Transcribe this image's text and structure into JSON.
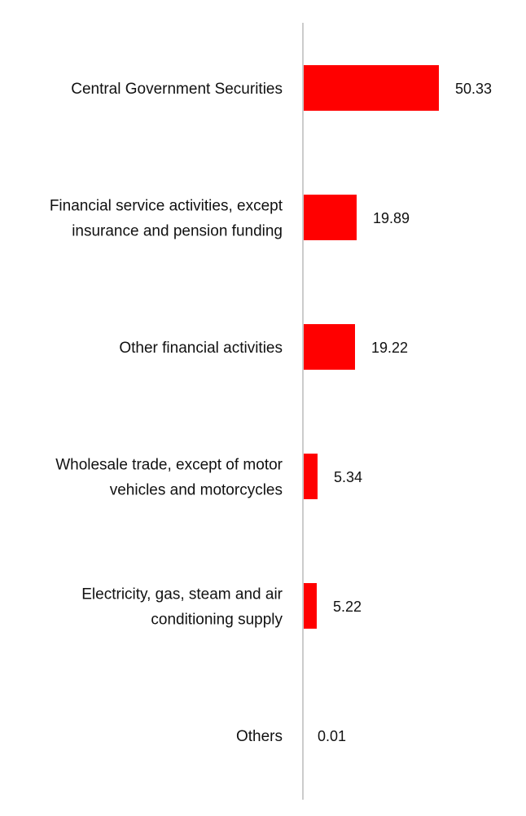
{
  "chart_data": {
    "type": "bar",
    "orientation": "horizontal",
    "title": "",
    "xlabel": "",
    "ylabel": "",
    "grid": false,
    "legend": "none",
    "bar_color": "#ff0000",
    "axis_color": "#cccccc",
    "xlim": [
      0,
      50.33
    ],
    "categories": [
      [
        "Central Government Securities"
      ],
      [
        "Financial service activities, except",
        "insurance and pension funding"
      ],
      [
        "Other financial activities"
      ],
      [
        "Wholesale trade, except of motor",
        "vehicles and motorcycles"
      ],
      [
        "Electricity, gas, steam and air",
        "conditioning supply"
      ],
      [
        "Others"
      ]
    ],
    "values": [
      50.33,
      19.89,
      19.22,
      5.34,
      5.22,
      0.01
    ],
    "value_labels": [
      "50.33",
      "19.89",
      "19.22",
      "5.34",
      "5.22",
      "0.01"
    ]
  }
}
